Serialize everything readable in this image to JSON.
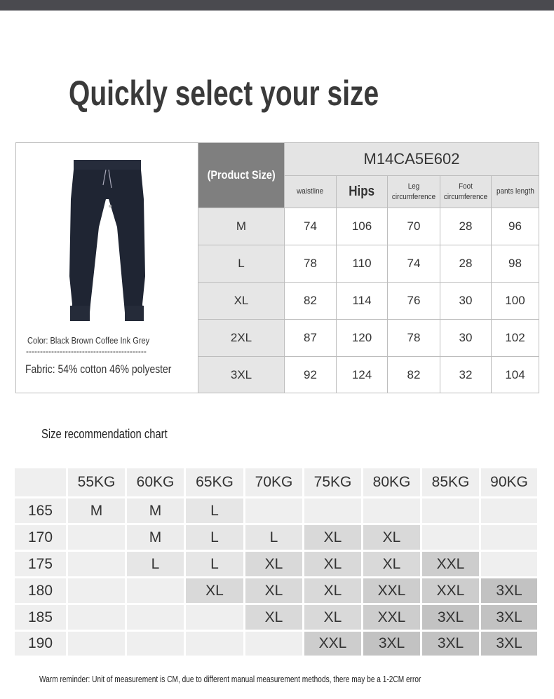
{
  "title": "Quickly select your size",
  "product": {
    "color_text": "Color: Black Brown Coffee Ink Grey",
    "divider": "-------------------------------------------",
    "fabric_text": "Fabric: 54% cotton 46% polyester",
    "image_icon": "jogger-pants-image",
    "image_color": "#1f2533"
  },
  "spec_table": {
    "size_header": "(Product Size)",
    "model": "M14CA5E602",
    "columns": [
      "waistline",
      "Hips",
      "Leg circumference",
      "Foot circumference",
      "pants length"
    ],
    "rows": [
      {
        "size": "M",
        "values": [
          "74",
          "106",
          "70",
          "28",
          "96"
        ]
      },
      {
        "size": "L",
        "values": [
          "78",
          "110",
          "74",
          "28",
          "98"
        ]
      },
      {
        "size": "XL",
        "values": [
          "82",
          "114",
          "76",
          "30",
          "100"
        ]
      },
      {
        "size": "2XL",
        "values": [
          "87",
          "120",
          "78",
          "30",
          "102"
        ]
      },
      {
        "size": "3XL",
        "values": [
          "92",
          "124",
          "82",
          "32",
          "104"
        ]
      }
    ]
  },
  "recommendation": {
    "title": "Size recommendation chart",
    "weights": [
      "55KG",
      "60KG",
      "65KG",
      "70KG",
      "75KG",
      "80KG",
      "85KG",
      "90KG"
    ],
    "rows": [
      {
        "height": "165",
        "sizes": [
          "M",
          "M",
          "L",
          "",
          "",
          "",
          "",
          ""
        ]
      },
      {
        "height": "170",
        "sizes": [
          "",
          "M",
          "L",
          "L",
          "XL",
          "XL",
          "",
          ""
        ]
      },
      {
        "height": "175",
        "sizes": [
          "",
          "L",
          "L",
          "XL",
          "XL",
          "XL",
          "XXL",
          ""
        ]
      },
      {
        "height": "180",
        "sizes": [
          "",
          "",
          "XL",
          "XL",
          "XL",
          "XXL",
          "XXL",
          "3XL"
        ]
      },
      {
        "height": "185",
        "sizes": [
          "",
          "",
          "",
          "XL",
          "XL",
          "XXL",
          "3XL",
          "3XL"
        ]
      },
      {
        "height": "190",
        "sizes": [
          "",
          "",
          "",
          "",
          "XXL",
          "3XL",
          "3XL",
          "3XL"
        ]
      }
    ],
    "colors": {
      "empty": "#efefef",
      "M": "#ececec",
      "L": "#e6e6e6",
      "XL": "#d9d9d9",
      "XXL": "#cdcdcd",
      "3XL": "#c2c2c2",
      "header": "#efefef"
    }
  },
  "footer": "Warm reminder: Unit of measurement is CM, due to different manual measurement methods, there may be a 1-2CM error"
}
